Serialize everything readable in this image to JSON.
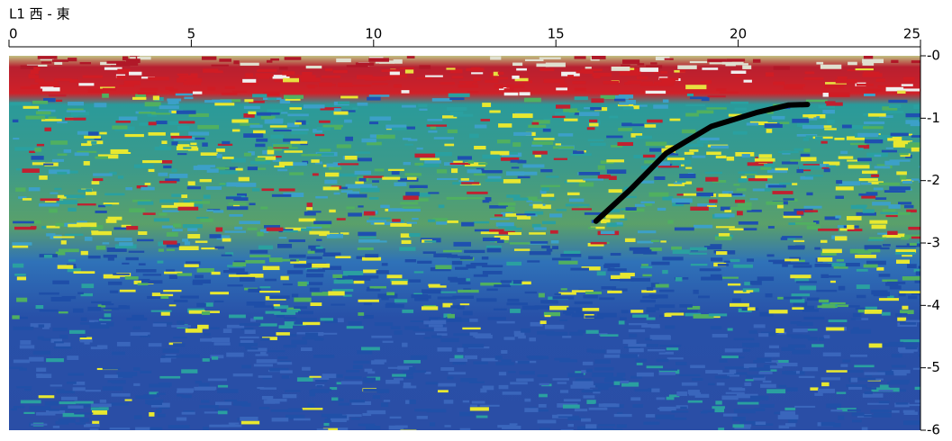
{
  "chart_data": {
    "type": "radargram",
    "title": "L1 西 - 東",
    "xlim": [
      0,
      25
    ],
    "xticks": [
      0,
      5,
      10,
      15,
      20,
      25
    ],
    "ylim": [
      -6,
      0
    ],
    "yticks": [
      {
        "value": 0,
        "label": "-0"
      },
      -1,
      -2,
      -3,
      -4,
      -5,
      -6
    ],
    "trace": {
      "color": "#000000",
      "x": [
        16.1,
        17.05,
        18.03,
        19.27,
        20.5,
        21.37,
        21.9
      ],
      "y": [
        -2.65,
        -2.14,
        -1.56,
        -1.13,
        -0.91,
        -0.79,
        -0.78
      ]
    }
  }
}
